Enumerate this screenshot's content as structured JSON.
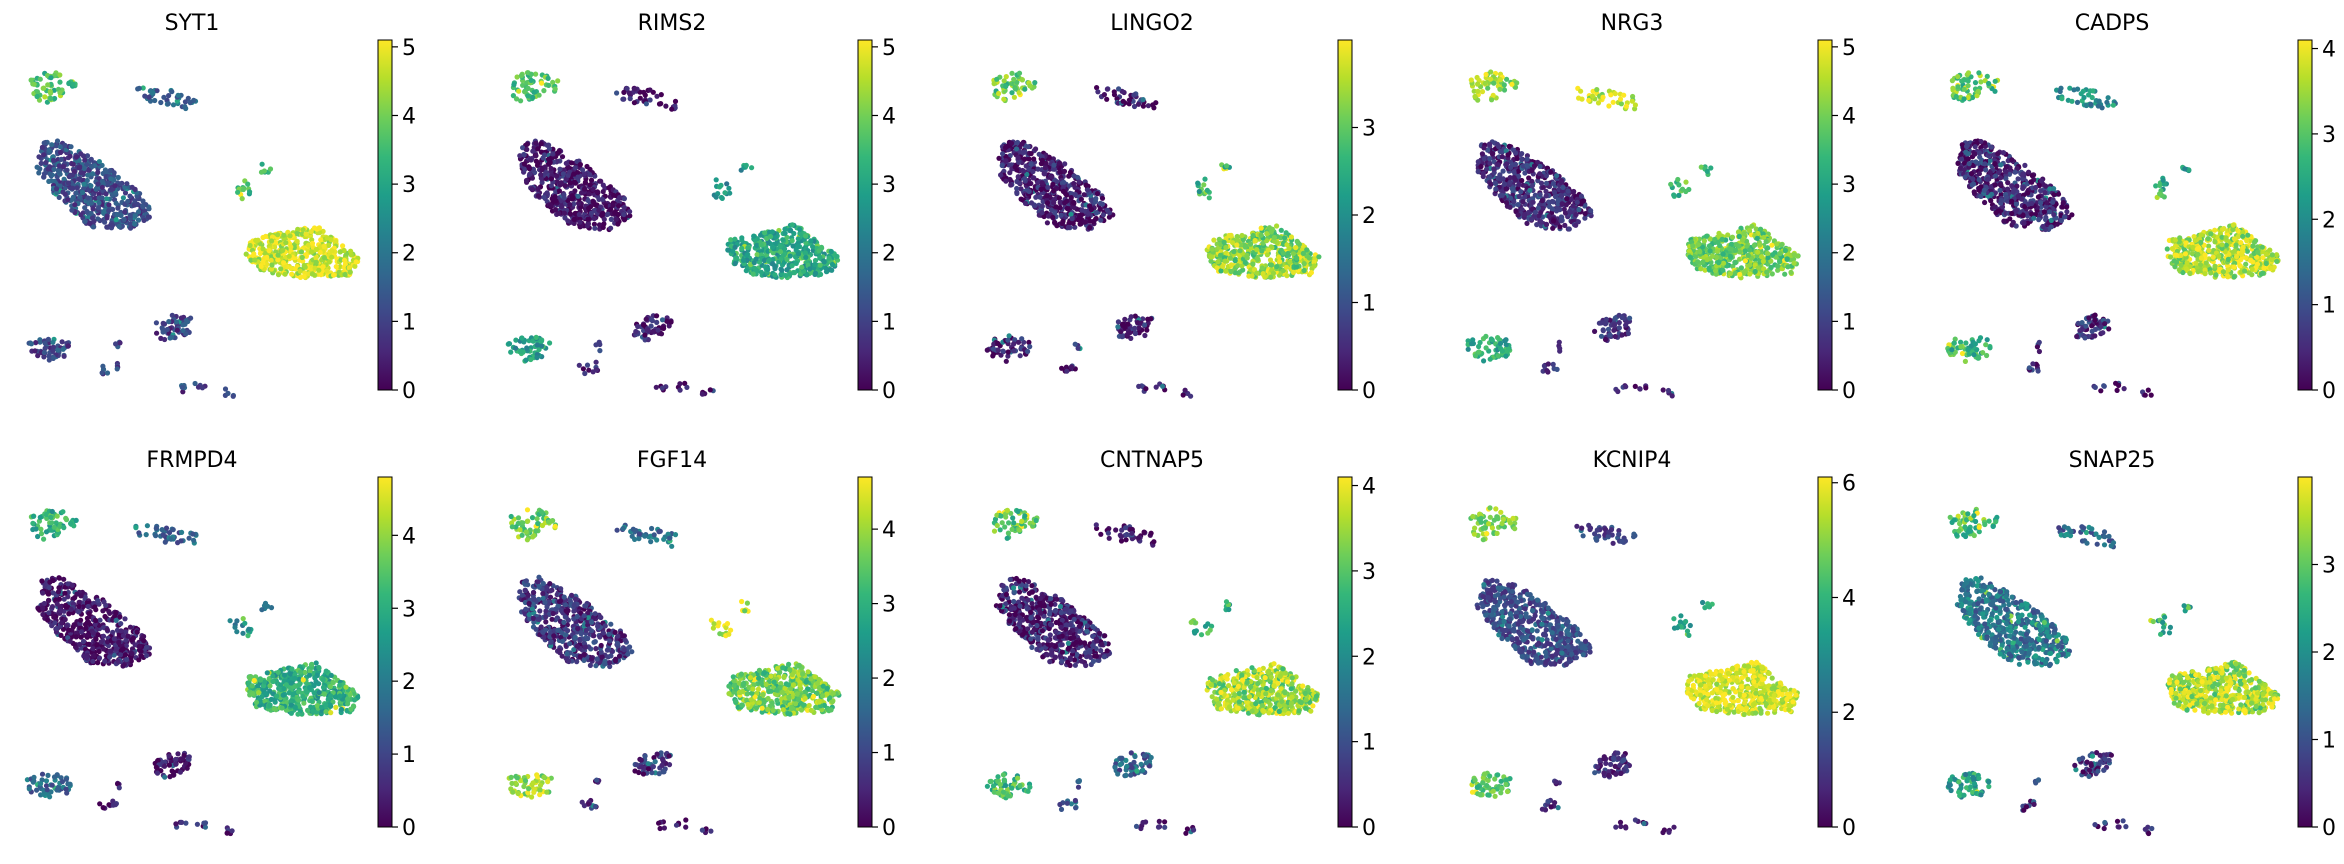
{
  "figure": {
    "colormap": "viridis",
    "colors": {
      "viridis_stops": [
        "#440154",
        "#482878",
        "#3e4989",
        "#31688e",
        "#26828e",
        "#1f9e89",
        "#35b779",
        "#6ece58",
        "#b5de2b",
        "#fde725"
      ]
    }
  },
  "chart_data": [
    {
      "type": "scatter",
      "title": "SYT1",
      "colorbar": {
        "min": 0,
        "max": 5.1,
        "ticks": [
          0,
          1,
          2,
          3,
          4,
          5
        ]
      },
      "cluster_levels": {
        "top_left": 3.6,
        "top_mid": 1.6,
        "big_left": 1.2,
        "small_mid": 3.5,
        "big_right": 4.7,
        "bottom_left": 1.1,
        "bottom_mid": 1.0,
        "bottom_right": 1.0
      }
    },
    {
      "type": "scatter",
      "title": "RIMS2",
      "colorbar": {
        "min": 0,
        "max": 5.1,
        "ticks": [
          0,
          1,
          2,
          3,
          4,
          5
        ]
      },
      "cluster_levels": {
        "top_left": 3.6,
        "top_mid": 0.3,
        "big_left": 0.3,
        "small_mid": 2.6,
        "big_right": 3.0,
        "bottom_left": 2.8,
        "bottom_mid": 0.5,
        "bottom_right": 0.3
      }
    },
    {
      "type": "scatter",
      "title": "LINGO2",
      "colorbar": {
        "min": 0,
        "max": 4.0,
        "ticks": [
          0,
          1,
          2,
          3
        ]
      },
      "cluster_levels": {
        "top_left": 3.0,
        "top_mid": 0.3,
        "big_left": 0.3,
        "small_mid": 2.6,
        "big_right": 3.3,
        "bottom_left": 0.3,
        "bottom_mid": 0.4,
        "bottom_right": 0.2
      }
    },
    {
      "type": "scatter",
      "title": "NRG3",
      "colorbar": {
        "min": 0,
        "max": 5.1,
        "ticks": [
          0,
          1,
          2,
          3,
          4,
          5
        ]
      },
      "cluster_levels": {
        "top_left": 4.3,
        "top_mid": 4.6,
        "big_left": 0.6,
        "small_mid": 3.4,
        "big_right": 3.9,
        "bottom_left": 3.1,
        "bottom_mid": 0.8,
        "bottom_right": 0.4
      }
    },
    {
      "type": "scatter",
      "title": "CADPS",
      "colorbar": {
        "min": 0,
        "max": 4.1,
        "ticks": [
          0,
          1,
          2,
          3,
          4
        ]
      },
      "cluster_levels": {
        "top_left": 3.0,
        "top_mid": 2.0,
        "big_left": 0.4,
        "small_mid": 2.5,
        "big_right": 3.6,
        "bottom_left": 2.8,
        "bottom_mid": 0.5,
        "bottom_right": 0.3
      }
    },
    {
      "type": "scatter",
      "title": "FRMPD4",
      "colorbar": {
        "min": 0,
        "max": 4.8,
        "ticks": [
          0,
          1,
          2,
          3,
          4
        ]
      },
      "cluster_levels": {
        "top_left": 3.0,
        "top_mid": 1.5,
        "big_left": 0.2,
        "small_mid": 2.2,
        "big_right": 3.0,
        "bottom_left": 1.6,
        "bottom_mid": 0.3,
        "bottom_right": 0.5
      }
    },
    {
      "type": "scatter",
      "title": "FGF14",
      "colorbar": {
        "min": 0,
        "max": 4.7,
        "ticks": [
          0,
          1,
          2,
          3,
          4
        ]
      },
      "cluster_levels": {
        "top_left": 3.6,
        "top_mid": 1.6,
        "big_left": 0.7,
        "small_mid": 4.2,
        "big_right": 3.6,
        "bottom_left": 4.0,
        "bottom_mid": 0.6,
        "bottom_right": 0.2
      }
    },
    {
      "type": "scatter",
      "title": "CNTNAP5",
      "colorbar": {
        "min": 0,
        "max": 4.1,
        "ticks": [
          0,
          1,
          2,
          3,
          4
        ]
      },
      "cluster_levels": {
        "top_left": 3.0,
        "top_mid": 0.2,
        "big_left": 0.3,
        "small_mid": 2.7,
        "big_right": 3.4,
        "bottom_left": 2.8,
        "bottom_mid": 1.3,
        "bottom_right": 0.2
      }
    },
    {
      "type": "scatter",
      "title": "KCNIP4",
      "colorbar": {
        "min": 0,
        "max": 6.1,
        "ticks": [
          0,
          2,
          4,
          6
        ]
      },
      "cluster_levels": {
        "top_left": 4.9,
        "top_mid": 1.2,
        "big_left": 1.4,
        "small_mid": 3.5,
        "big_right": 5.6,
        "bottom_left": 4.4,
        "bottom_mid": 0.8,
        "bottom_right": 0.6
      }
    },
    {
      "type": "scatter",
      "title": "SNAP25",
      "colorbar": {
        "min": 0,
        "max": 4.0,
        "ticks": [
          0,
          1,
          2,
          3
        ]
      },
      "cluster_levels": {
        "top_left": 2.9,
        "top_mid": 1.4,
        "big_left": 1.6,
        "small_mid": 2.5,
        "big_right": 3.4,
        "bottom_left": 2.2,
        "bottom_mid": 0.6,
        "bottom_right": 0.3
      }
    }
  ]
}
